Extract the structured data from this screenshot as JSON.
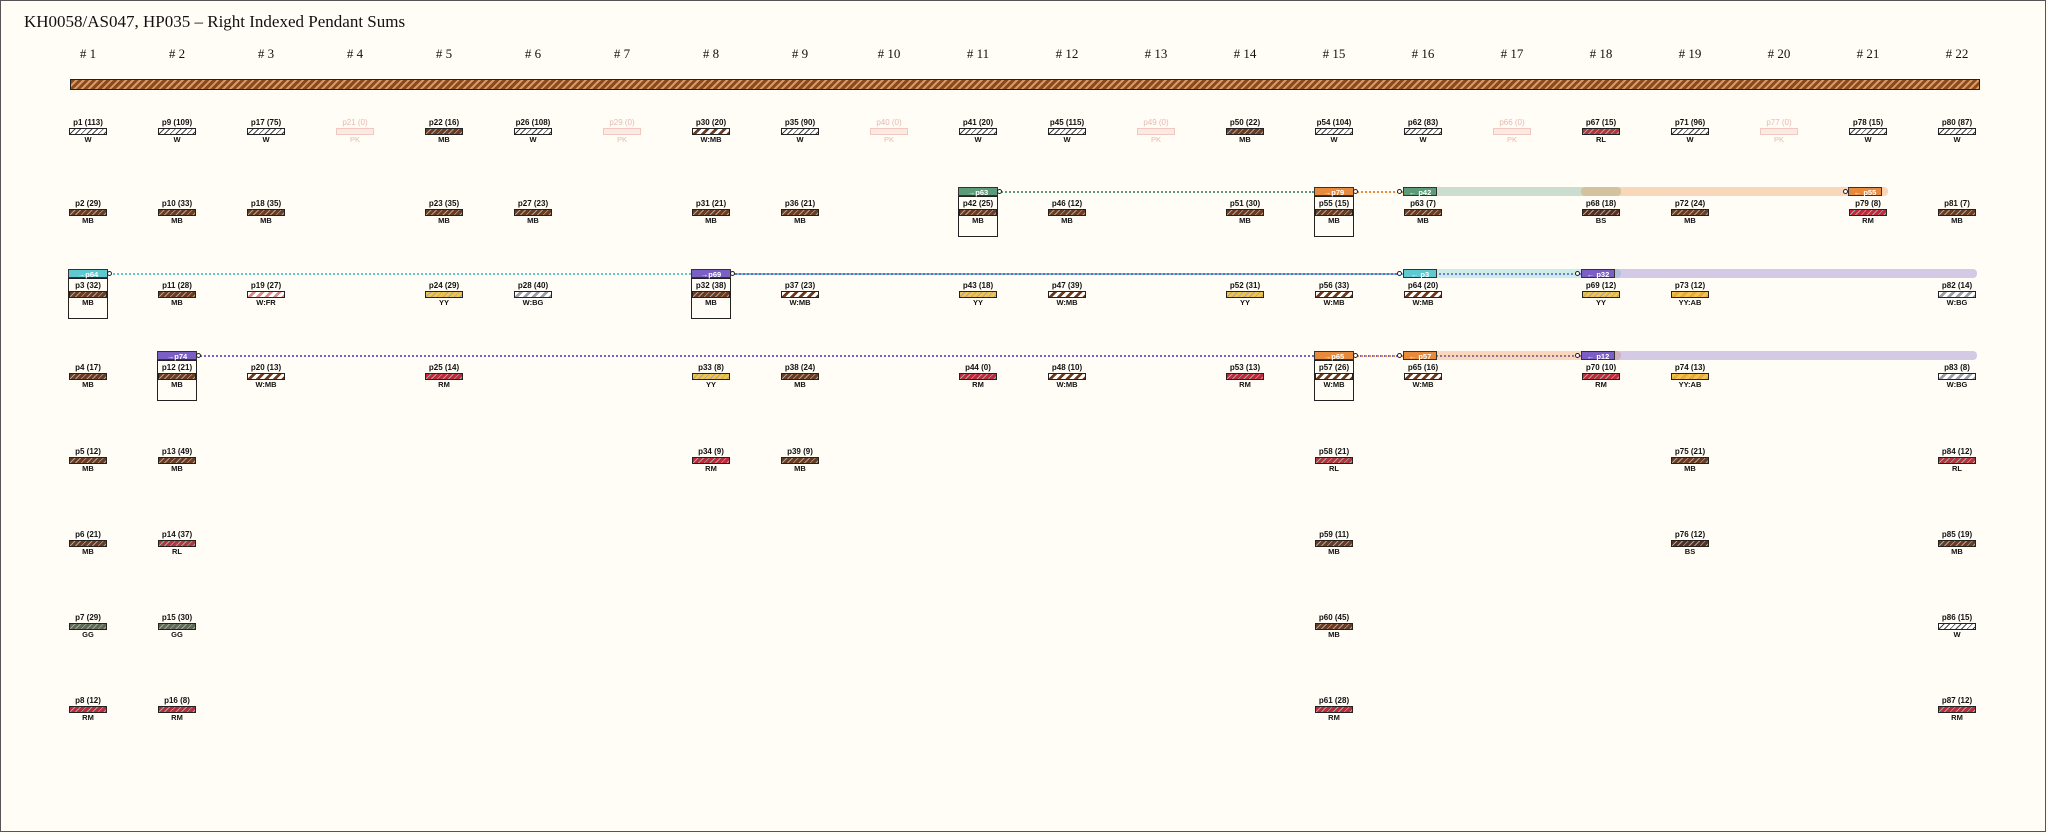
{
  "title": "KH0058/AS047, HP035 – Right Indexed Pendant Sums",
  "colors": {
    "MB": "#6e3a1e",
    "W": "#ffffff",
    "PK": "#f7d7cf",
    "RL": "#b5343c",
    "RM": "#c0283a",
    "BS": "#5a2e1e",
    "YY": "#f0c44a",
    "GG": "#5d6a55",
    "YYAB": "#e8a840",
    "teal": "#5fc9cf",
    "purple": "#7b5fc4",
    "orange": "#e88a3c",
    "green": "#5d9b78"
  },
  "columns": [
    "# 1",
    "# 2",
    "# 3",
    "# 4",
    "# 5",
    "# 6",
    "# 7",
    "# 8",
    "# 9",
    "# 10",
    "# 11",
    "# 12",
    "# 13",
    "# 14",
    "# 15",
    "# 16",
    "# 17",
    "# 18",
    "# 19",
    "# 20",
    "# 21",
    "# 22"
  ],
  "pendants": [
    {
      "col": 1,
      "row": 0,
      "label": "p1 (113)",
      "color": "W"
    },
    {
      "col": 1,
      "row": 1,
      "label": "p2 (29)",
      "color": "MB"
    },
    {
      "col": 1,
      "row": 2,
      "label": "p3 (32)",
      "color": "MB"
    },
    {
      "col": 1,
      "row": 3,
      "label": "p4 (17)",
      "color": "MB"
    },
    {
      "col": 1,
      "row": 4,
      "label": "p5 (12)",
      "color": "MB"
    },
    {
      "col": 1,
      "row": 5,
      "label": "p6 (21)",
      "color": "MB"
    },
    {
      "col": 1,
      "row": 6,
      "label": "p7 (29)",
      "color": "GG"
    },
    {
      "col": 1,
      "row": 7,
      "label": "p8 (12)",
      "color": "RM"
    },
    {
      "col": 2,
      "row": 0,
      "label": "p9 (109)",
      "color": "W"
    },
    {
      "col": 2,
      "row": 1,
      "label": "p10 (33)",
      "color": "MB"
    },
    {
      "col": 2,
      "row": 2,
      "label": "p11 (28)",
      "color": "MB"
    },
    {
      "col": 2,
      "row": 3,
      "label": "p12 (21)",
      "color": "MB"
    },
    {
      "col": 2,
      "row": 4,
      "label": "p13 (49)",
      "color": "MB"
    },
    {
      "col": 2,
      "row": 5,
      "label": "p14 (37)",
      "color": "RL"
    },
    {
      "col": 2,
      "row": 6,
      "label": "p15 (30)",
      "color": "GG"
    },
    {
      "col": 2,
      "row": 7,
      "label": "p16 (8)",
      "color": "RM"
    },
    {
      "col": 3,
      "row": 0,
      "label": "p17 (75)",
      "color": "W"
    },
    {
      "col": 3,
      "row": 1,
      "label": "p18 (35)",
      "color": "MB"
    },
    {
      "col": 3,
      "row": 2,
      "label": "p19 (27)",
      "color": "W:FR"
    },
    {
      "col": 3,
      "row": 3,
      "label": "p20 (13)",
      "color": "W:MB"
    },
    {
      "col": 4,
      "row": 0,
      "label": "p21 (0)",
      "color": "PK",
      "faint": true
    },
    {
      "col": 5,
      "row": 0,
      "label": "p22 (16)",
      "color": "MB"
    },
    {
      "col": 5,
      "row": 1,
      "label": "p23 (35)",
      "color": "MB"
    },
    {
      "col": 5,
      "row": 2,
      "label": "p24 (29)",
      "color": "YY"
    },
    {
      "col": 5,
      "row": 3,
      "label": "p25 (14)",
      "color": "RM"
    },
    {
      "col": 6,
      "row": 0,
      "label": "p26 (108)",
      "color": "W"
    },
    {
      "col": 6,
      "row": 1,
      "label": "p27 (23)",
      "color": "MB"
    },
    {
      "col": 6,
      "row": 2,
      "label": "p28 (40)",
      "color": "W:BG"
    },
    {
      "col": 7,
      "row": 0,
      "label": "p29 (0)",
      "color": "PK",
      "faint": true
    },
    {
      "col": 8,
      "row": 0,
      "label": "p30 (20)",
      "color": "W:MB"
    },
    {
      "col": 8,
      "row": 1,
      "label": "p31 (21)",
      "color": "MB"
    },
    {
      "col": 8,
      "row": 2,
      "label": "p32 (38)",
      "color": "MB"
    },
    {
      "col": 8,
      "row": 3,
      "label": "p33 (8)",
      "color": "YY"
    },
    {
      "col": 8,
      "row": 4,
      "label": "p34 (9)",
      "color": "RM"
    },
    {
      "col": 9,
      "row": 0,
      "label": "p35 (90)",
      "color": "W"
    },
    {
      "col": 9,
      "row": 1,
      "label": "p36 (21)",
      "color": "MB"
    },
    {
      "col": 9,
      "row": 2,
      "label": "p37 (23)",
      "color": "W:MB"
    },
    {
      "col": 9,
      "row": 3,
      "label": "p38 (24)",
      "color": "MB"
    },
    {
      "col": 9,
      "row": 4,
      "label": "p39 (9)",
      "color": "MB"
    },
    {
      "col": 10,
      "row": 0,
      "label": "p40 (0)",
      "color": "PK",
      "faint": true
    },
    {
      "col": 11,
      "row": 0,
      "label": "p41 (20)",
      "color": "W"
    },
    {
      "col": 11,
      "row": 1,
      "label": "p42 (25)",
      "color": "MB"
    },
    {
      "col": 11,
      "row": 2,
      "label": "p43 (18)",
      "color": "YY"
    },
    {
      "col": 11,
      "row": 3,
      "label": "p44 (0)",
      "color": "RM"
    },
    {
      "col": 12,
      "row": 0,
      "label": "p45 (115)",
      "color": "W"
    },
    {
      "col": 12,
      "row": 1,
      "label": "p46 (12)",
      "color": "MB"
    },
    {
      "col": 12,
      "row": 2,
      "label": "p47 (39)",
      "color": "W:MB"
    },
    {
      "col": 12,
      "row": 3,
      "label": "p48 (10)",
      "color": "W:MB"
    },
    {
      "col": 13,
      "row": 0,
      "label": "p49 (0)",
      "color": "PK",
      "faint": true
    },
    {
      "col": 14,
      "row": 0,
      "label": "p50 (22)",
      "color": "MB"
    },
    {
      "col": 14,
      "row": 1,
      "label": "p51 (30)",
      "color": "MB"
    },
    {
      "col": 14,
      "row": 2,
      "label": "p52 (31)",
      "color": "YY"
    },
    {
      "col": 14,
      "row": 3,
      "label": "p53 (13)",
      "color": "RM"
    },
    {
      "col": 15,
      "row": 0,
      "label": "p54 (104)",
      "color": "W"
    },
    {
      "col": 15,
      "row": 1,
      "label": "p55 (15)",
      "color": "MB"
    },
    {
      "col": 15,
      "row": 2,
      "label": "p56 (33)",
      "color": "W:MB"
    },
    {
      "col": 15,
      "row": 3,
      "label": "p57 (26)",
      "color": "W:MB"
    },
    {
      "col": 15,
      "row": 4,
      "label": "p58 (21)",
      "color": "RL"
    },
    {
      "col": 15,
      "row": 5,
      "label": "p59 (11)",
      "color": "MB"
    },
    {
      "col": 15,
      "row": 6,
      "label": "p60 (45)",
      "color": "MB"
    },
    {
      "col": 15,
      "row": 7,
      "label": "p61 (28)",
      "color": "RM"
    },
    {
      "col": 16,
      "row": 0,
      "label": "p62 (83)",
      "color": "W"
    },
    {
      "col": 16,
      "row": 1,
      "label": "p63 (7)",
      "color": "MB"
    },
    {
      "col": 16,
      "row": 2,
      "label": "p64 (20)",
      "color": "W:MB"
    },
    {
      "col": 16,
      "row": 3,
      "label": "p65 (16)",
      "color": "W:MB"
    },
    {
      "col": 17,
      "row": 0,
      "label": "p66 (0)",
      "color": "PK",
      "faint": true
    },
    {
      "col": 18,
      "row": 0,
      "label": "p67 (15)",
      "color": "RL"
    },
    {
      "col": 18,
      "row": 1,
      "label": "p68 (18)",
      "color": "BS"
    },
    {
      "col": 18,
      "row": 2,
      "label": "p69 (12)",
      "color": "YY"
    },
    {
      "col": 18,
      "row": 3,
      "label": "p70 (10)",
      "color": "RM"
    },
    {
      "col": 19,
      "row": 0,
      "label": "p71 (96)",
      "color": "W"
    },
    {
      "col": 19,
      "row": 1,
      "label": "p72 (24)",
      "color": "MB"
    },
    {
      "col": 19,
      "row": 2,
      "label": "p73 (12)",
      "color": "YY:AB"
    },
    {
      "col": 19,
      "row": 3,
      "label": "p74 (13)",
      "color": "YY:AB"
    },
    {
      "col": 19,
      "row": 4,
      "label": "p75 (21)",
      "color": "MB"
    },
    {
      "col": 19,
      "row": 5,
      "label": "p76 (12)",
      "color": "BS"
    },
    {
      "col": 20,
      "row": 0,
      "label": "p77 (0)",
      "color": "PK",
      "faint": true
    },
    {
      "col": 21,
      "row": 0,
      "label": "p78 (15)",
      "color": "W"
    },
    {
      "col": 21,
      "row": 1,
      "label": "p79 (8)",
      "color": "RM"
    },
    {
      "col": 22,
      "row": 0,
      "label": "p80 (87)",
      "color": "W"
    },
    {
      "col": 22,
      "row": 1,
      "label": "p81 (7)",
      "color": "MB"
    },
    {
      "col": 22,
      "row": 2,
      "label": "p82 (14)",
      "color": "W:BG"
    },
    {
      "col": 22,
      "row": 3,
      "label": "p83 (8)",
      "color": "W:BG"
    },
    {
      "col": 22,
      "row": 4,
      "label": "p84 (12)",
      "color": "RL"
    },
    {
      "col": 22,
      "row": 5,
      "label": "p85 (19)",
      "color": "MB"
    },
    {
      "col": 22,
      "row": 6,
      "label": "p86 (15)",
      "color": "W"
    },
    {
      "col": 22,
      "row": 7,
      "label": "p87 (12)",
      "color": "RM"
    }
  ],
  "boxed": [
    {
      "col": 1,
      "row": 2
    },
    {
      "col": 2,
      "row": 3
    },
    {
      "col": 8,
      "row": 2
    },
    {
      "col": 11,
      "row": 1
    },
    {
      "col": 15,
      "row": 1
    },
    {
      "col": 15,
      "row": 3
    }
  ],
  "links": [
    {
      "row": 1,
      "fromCol": 11,
      "toCol": 15,
      "tag": "→p63",
      "tagColor": "green"
    },
    {
      "row": 1,
      "fromCol": 15,
      "toCol": 16,
      "tag": "→p79",
      "tagColor": "orange"
    },
    {
      "row": 1,
      "fromCol": 16,
      "toCol": 18,
      "tag": "← p42",
      "tagColor": "green",
      "band": true
    },
    {
      "row": 1,
      "fromCol": 18,
      "toCol": 21,
      "tag": "← p55",
      "tagColor": "orange",
      "band": true,
      "tagAtEnd": true
    },
    {
      "row": 2,
      "fromCol": 1,
      "toCol": 16,
      "tag": "→p64",
      "tagColor": "teal"
    },
    {
      "row": 2,
      "fromCol": 8,
      "toCol": 18,
      "tag": "→p69",
      "tagColor": "purple"
    },
    {
      "row": 2,
      "fromCol": 16,
      "toCol": 18,
      "tag": "← p3",
      "tagColor": "teal",
      "band": true
    },
    {
      "row": 2,
      "fromCol": 18,
      "toCol": 22,
      "tag": "← p32",
      "tagColor": "purple",
      "band": true
    },
    {
      "row": 3,
      "fromCol": 2,
      "toCol": 18,
      "tag": "→p74",
      "tagColor": "purple"
    },
    {
      "row": 3,
      "fromCol": 15,
      "toCol": 16,
      "tag": "→p65",
      "tagColor": "orange"
    },
    {
      "row": 3,
      "fromCol": 16,
      "toCol": 18,
      "tag": "← p57",
      "tagColor": "orange",
      "band": true
    },
    {
      "row": 3,
      "fromCol": 18,
      "toCol": 22,
      "tag": "← p12",
      "tagColor": "purple",
      "band": true
    }
  ]
}
